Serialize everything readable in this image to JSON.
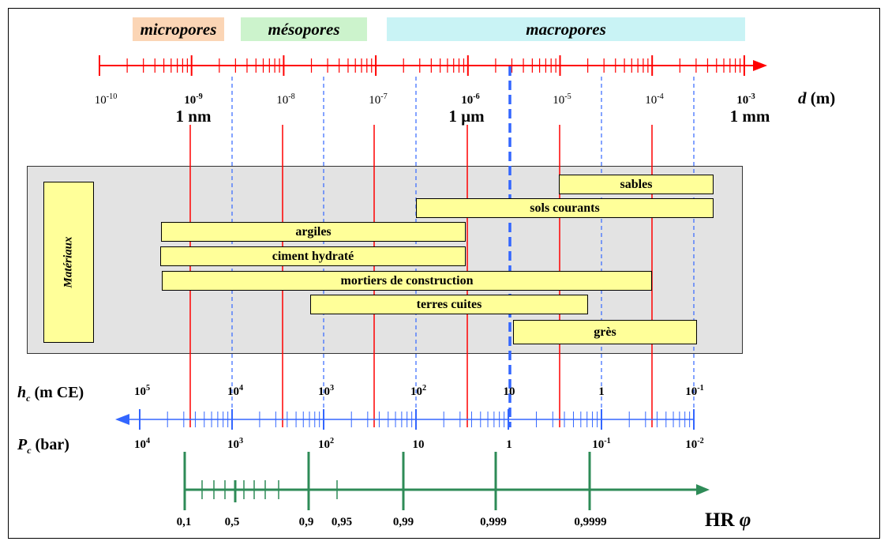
{
  "bands": {
    "micro": {
      "label": "micropores",
      "color": "#fbd5b5"
    },
    "meso": {
      "label": "mésopores",
      "color": "#ccf3cc"
    },
    "macro": {
      "label": "macropores",
      "color": "#c9f3f5"
    }
  },
  "d_axis": {
    "title_var": "d",
    "title_unit": "(m)",
    "color": "#ff0000",
    "labels": [
      {
        "base": "10",
        "exp": "-10"
      },
      {
        "base": "10",
        "exp": "-9"
      },
      {
        "base": "10",
        "exp": "-8"
      },
      {
        "base": "10",
        "exp": "-7"
      },
      {
        "base": "10",
        "exp": "-6"
      },
      {
        "base": "10",
        "exp": "-5"
      },
      {
        "base": "10",
        "exp": "-4"
      },
      {
        "base": "10",
        "exp": "-3"
      }
    ],
    "sub_labels": [
      "1 nm",
      "1 µm",
      "1 mm"
    ]
  },
  "materials": {
    "panel_label": "Matériaux",
    "items": [
      "sables",
      "sols courants",
      "argiles",
      "ciment hydraté",
      "mortiers de construction",
      "terres cuites",
      "grès"
    ]
  },
  "hc_axis": {
    "title_var": "h",
    "title_sub": "c",
    "title_unit": "(m CE)",
    "color": "#3366ff",
    "labels": [
      {
        "base": "10",
        "exp": "5"
      },
      {
        "base": "10",
        "exp": "4"
      },
      {
        "base": "10",
        "exp": "3"
      },
      {
        "base": "10",
        "exp": "2"
      },
      {
        "base": "10",
        "exp": ""
      },
      {
        "base": "1",
        "exp": ""
      },
      {
        "base": "10",
        "exp": "-1"
      }
    ]
  },
  "pc_axis": {
    "title_var": "P",
    "title_sub": "c",
    "title_unit": "(bar)",
    "labels": [
      {
        "base": "10",
        "exp": "4"
      },
      {
        "base": "10",
        "exp": "3"
      },
      {
        "base": "10",
        "exp": "2"
      },
      {
        "base": "10",
        "exp": ""
      },
      {
        "base": "1",
        "exp": ""
      },
      {
        "base": "10",
        "exp": "-1"
      },
      {
        "base": "10",
        "exp": "-2"
      }
    ]
  },
  "hr_axis": {
    "title": "HR",
    "symbol": "φ",
    "color": "#2e8b57",
    "labels": [
      "0,1",
      "0,5",
      "0,9",
      "0,95",
      "0,99",
      "0,999",
      "0,9999"
    ]
  }
}
